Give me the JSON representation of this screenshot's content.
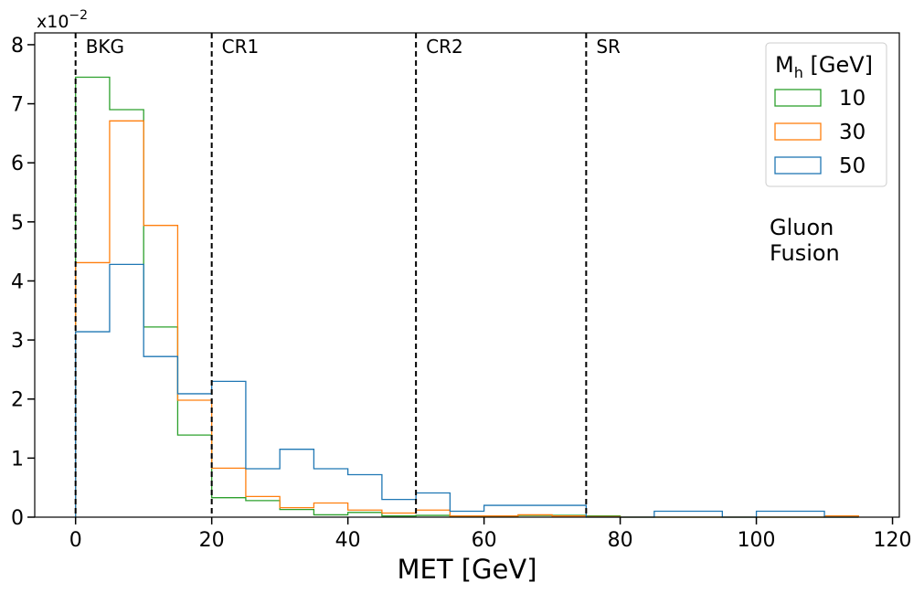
{
  "chart_data": {
    "type": "histogram",
    "title": "",
    "xlabel": "MET [GeV]",
    "ylabel": "",
    "scale_label": "x10",
    "scale_exponent": "−2",
    "xlim": [
      -6,
      121
    ],
    "ylim": [
      0,
      8.2
    ],
    "xticks": [
      0,
      20,
      40,
      60,
      80,
      100,
      120
    ],
    "yticks": [
      0,
      1,
      2,
      3,
      4,
      5,
      6,
      7,
      8
    ],
    "bin_edges": [
      0,
      5,
      10,
      15,
      20,
      25,
      30,
      35,
      40,
      45,
      50,
      55,
      60,
      65,
      70,
      75,
      80,
      85,
      90,
      95,
      100,
      105,
      110,
      115
    ],
    "series": [
      {
        "name": "10",
        "color": "#2ca02c",
        "values": [
          7.45,
          6.9,
          3.22,
          1.39,
          0.33,
          0.28,
          0.13,
          0.04,
          0.08,
          0.02,
          0.03,
          0.01,
          0.01,
          0.03,
          0.03,
          0.02,
          0.0,
          0.0,
          0.0,
          0.0,
          0.0,
          0.0,
          0.0
        ]
      },
      {
        "name": "30",
        "color": "#ff7f0e",
        "values": [
          4.31,
          6.71,
          4.94,
          1.98,
          0.83,
          0.35,
          0.16,
          0.24,
          0.12,
          0.07,
          0.12,
          0.02,
          0.02,
          0.04,
          0.02,
          0.01,
          0.0,
          0.0,
          0.0,
          0.0,
          0.0,
          0.0,
          0.02
        ]
      },
      {
        "name": "50",
        "color": "#1f77b4",
        "values": [
          3.14,
          4.28,
          2.72,
          2.09,
          2.3,
          0.82,
          1.15,
          0.82,
          0.72,
          0.3,
          0.41,
          0.1,
          0.2,
          0.2,
          0.2,
          0.0,
          0.0,
          0.1,
          0.1,
          0.0,
          0.1,
          0.1,
          0.0
        ]
      }
    ],
    "regions": [
      {
        "label": "BKG",
        "x": 0
      },
      {
        "label": "CR1",
        "x": 20
      },
      {
        "label": "CR2",
        "x": 50
      },
      {
        "label": "SR",
        "x": 75
      }
    ],
    "legend": {
      "title_main": "M",
      "title_sub": "h",
      "title_rest": " [GeV]",
      "placement": "top-right"
    },
    "annotation": {
      "line1": "Gluon",
      "line2": "Fusion"
    }
  }
}
